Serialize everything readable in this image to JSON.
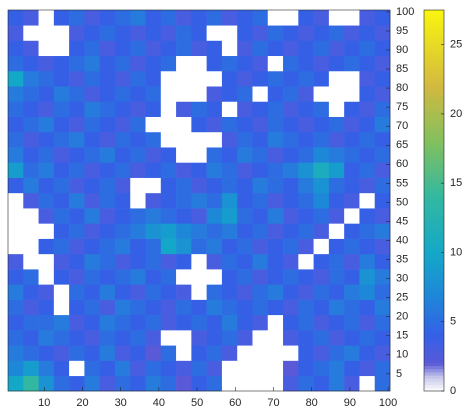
{
  "chart_data": {
    "type": "heatmap",
    "x": [
      2.5,
      6.5,
      10.5,
      14.5,
      18.5,
      22.5,
      26.5,
      30.5,
      34.5,
      38.5,
      42.5,
      46.5,
      50.5,
      54.5,
      58.5,
      62.5,
      66.5,
      70.5,
      74.5,
      78.5,
      82.5,
      86.5,
      90.5,
      94.5,
      98.5
    ],
    "y": [
      2.5,
      6.5,
      10.5,
      14.5,
      18.5,
      22.5,
      26.5,
      30.5,
      34.5,
      38.5,
      42.5,
      46.5,
      50.5,
      54.5,
      58.5,
      62.5,
      66.5,
      70.5,
      74.5,
      78.5,
      82.5,
      86.5,
      90.5,
      94.5,
      98.5
    ],
    "z": [
      [
        10,
        14,
        8,
        5,
        4,
        6,
        3,
        5,
        4,
        6,
        5,
        2,
        4,
        5,
        0,
        0,
        0,
        0,
        3,
        5,
        4,
        6,
        3,
        0,
        5
      ],
      [
        7,
        9,
        6,
        4,
        0,
        5,
        4,
        6,
        3,
        5,
        4,
        3,
        5,
        3,
        0,
        0,
        0,
        0,
        2,
        4,
        5,
        6,
        4,
        3,
        5
      ],
      [
        6,
        5,
        4,
        3,
        5,
        4,
        6,
        3,
        4,
        2,
        5,
        0,
        4,
        5,
        3,
        0,
        0,
        0,
        0,
        4,
        3,
        5,
        6,
        4,
        3
      ],
      [
        5,
        4,
        6,
        5,
        4,
        3,
        5,
        4,
        5,
        3,
        0,
        0,
        3,
        4,
        5,
        3,
        0,
        0,
        3,
        4,
        5,
        3,
        4,
        5,
        4
      ],
      [
        4,
        5,
        5,
        6,
        3,
        4,
        6,
        5,
        4,
        5,
        3,
        4,
        5,
        4,
        6,
        4,
        3,
        0,
        4,
        5,
        3,
        4,
        5,
        3,
        5
      ],
      [
        5,
        3,
        4,
        0,
        4,
        5,
        3,
        6,
        5,
        4,
        3,
        5,
        4,
        6,
        5,
        4,
        5,
        4,
        3,
        5,
        4,
        6,
        5,
        4,
        6
      ],
      [
        6,
        4,
        3,
        0,
        5,
        4,
        6,
        4,
        3,
        5,
        4,
        3,
        0,
        5,
        4,
        3,
        5,
        6,
        4,
        3,
        5,
        4,
        6,
        7,
        5
      ],
      [
        4,
        5,
        0,
        4,
        3,
        5,
        4,
        5,
        6,
        4,
        5,
        0,
        0,
        0,
        4,
        5,
        3,
        4,
        5,
        4,
        3,
        5,
        4,
        8,
        6
      ],
      [
        3,
        0,
        0,
        3,
        4,
        6,
        5,
        3,
        4,
        5,
        3,
        4,
        0,
        3,
        5,
        4,
        6,
        4,
        3,
        0,
        4,
        5,
        3,
        6,
        4
      ],
      [
        0,
        0,
        4,
        5,
        3,
        4,
        5,
        6,
        4,
        5,
        10,
        8,
        5,
        6,
        4,
        5,
        3,
        4,
        5,
        3,
        0,
        4,
        5,
        4,
        3
      ],
      [
        0,
        0,
        0,
        4,
        5,
        3,
        4,
        5,
        6,
        8,
        9,
        7,
        6,
        5,
        6,
        4,
        5,
        3,
        4,
        5,
        3,
        0,
        4,
        5,
        6
      ],
      [
        0,
        0,
        3,
        5,
        4,
        6,
        3,
        4,
        5,
        6,
        5,
        4,
        3,
        7,
        9,
        5,
        4,
        6,
        3,
        4,
        5,
        3,
        0,
        4,
        3
      ],
      [
        0,
        3,
        5,
        4,
        6,
        3,
        5,
        4,
        0,
        3,
        4,
        5,
        6,
        5,
        8,
        4,
        5,
        3,
        4,
        5,
        7,
        4,
        3,
        0,
        4
      ],
      [
        4,
        6,
        4,
        5,
        3,
        4,
        5,
        3,
        0,
        0,
        4,
        5,
        3,
        4,
        5,
        4,
        6,
        5,
        4,
        6,
        8,
        5,
        4,
        3,
        5
      ],
      [
        9,
        5,
        6,
        4,
        5,
        3,
        4,
        5,
        3,
        4,
        5,
        3,
        4,
        6,
        5,
        3,
        4,
        5,
        6,
        8,
        11,
        9,
        4,
        5,
        3
      ],
      [
        6,
        4,
        5,
        3,
        4,
        5,
        6,
        4,
        5,
        3,
        4,
        0,
        0,
        5,
        4,
        6,
        5,
        3,
        4,
        5,
        7,
        6,
        5,
        4,
        5
      ],
      [
        5,
        3,
        4,
        5,
        6,
        4,
        3,
        5,
        4,
        5,
        0,
        0,
        0,
        0,
        3,
        5,
        4,
        6,
        5,
        4,
        5,
        3,
        4,
        5,
        4
      ],
      [
        4,
        5,
        6,
        4,
        3,
        5,
        4,
        3,
        5,
        0,
        0,
        0,
        4,
        3,
        5,
        4,
        3,
        5,
        4,
        3,
        4,
        5,
        3,
        4,
        6
      ],
      [
        5,
        4,
        3,
        5,
        4,
        6,
        5,
        4,
        3,
        4,
        0,
        3,
        5,
        4,
        0,
        3,
        4,
        5,
        3,
        4,
        5,
        0,
        4,
        3,
        5
      ],
      [
        6,
        5,
        4,
        6,
        5,
        3,
        4,
        5,
        4,
        5,
        0,
        0,
        0,
        3,
        4,
        5,
        0,
        4,
        5,
        3,
        0,
        0,
        0,
        4,
        3
      ],
      [
        10,
        6,
        5,
        4,
        3,
        5,
        4,
        3,
        5,
        4,
        0,
        0,
        0,
        0,
        4,
        3,
        4,
        5,
        4,
        5,
        4,
        0,
        0,
        3,
        4
      ],
      [
        5,
        4,
        3,
        4,
        5,
        6,
        4,
        5,
        3,
        4,
        5,
        0,
        0,
        4,
        5,
        4,
        3,
        0,
        5,
        4,
        3,
        4,
        5,
        4,
        3
      ],
      [
        4,
        3,
        0,
        0,
        4,
        5,
        3,
        4,
        5,
        3,
        4,
        5,
        3,
        4,
        0,
        3,
        5,
        4,
        3,
        4,
        5,
        3,
        4,
        5,
        4
      ],
      [
        3,
        0,
        0,
        0,
        3,
        4,
        5,
        4,
        3,
        4,
        3,
        5,
        4,
        0,
        0,
        4,
        3,
        5,
        4,
        3,
        4,
        5,
        3,
        4,
        3
      ],
      [
        4,
        3,
        0,
        4,
        5,
        3,
        4,
        5,
        6,
        4,
        5,
        3,
        4,
        5,
        3,
        4,
        5,
        0,
        0,
        4,
        3,
        0,
        0,
        3,
        4
      ]
    ],
    "xlim": [
      0.5,
      100.5
    ],
    "ylim": [
      0.5,
      100.5
    ],
    "xticks": [
      10,
      20,
      30,
      40,
      50,
      60,
      70,
      80,
      90,
      100
    ],
    "yticks": [
      5,
      10,
      15,
      20,
      25,
      30,
      35,
      40,
      45,
      50,
      55,
      60,
      65,
      70,
      75,
      80,
      85,
      90,
      95,
      100
    ],
    "clim": [
      0,
      27.5
    ],
    "cticks": [
      0,
      5,
      10,
      15,
      20,
      25
    ],
    "colormap": [
      [
        0,
        "#ffffff"
      ],
      [
        1,
        "#c8c8ec"
      ],
      [
        2,
        "#5a5ad8"
      ],
      [
        4,
        "#3560e6"
      ],
      [
        7,
        "#1e88d8"
      ],
      [
        10,
        "#14a8c8"
      ],
      [
        14,
        "#32b8a0"
      ],
      [
        18,
        "#82c05e"
      ],
      [
        22,
        "#d2b940"
      ],
      [
        27.5,
        "#f9f50f"
      ]
    ]
  }
}
